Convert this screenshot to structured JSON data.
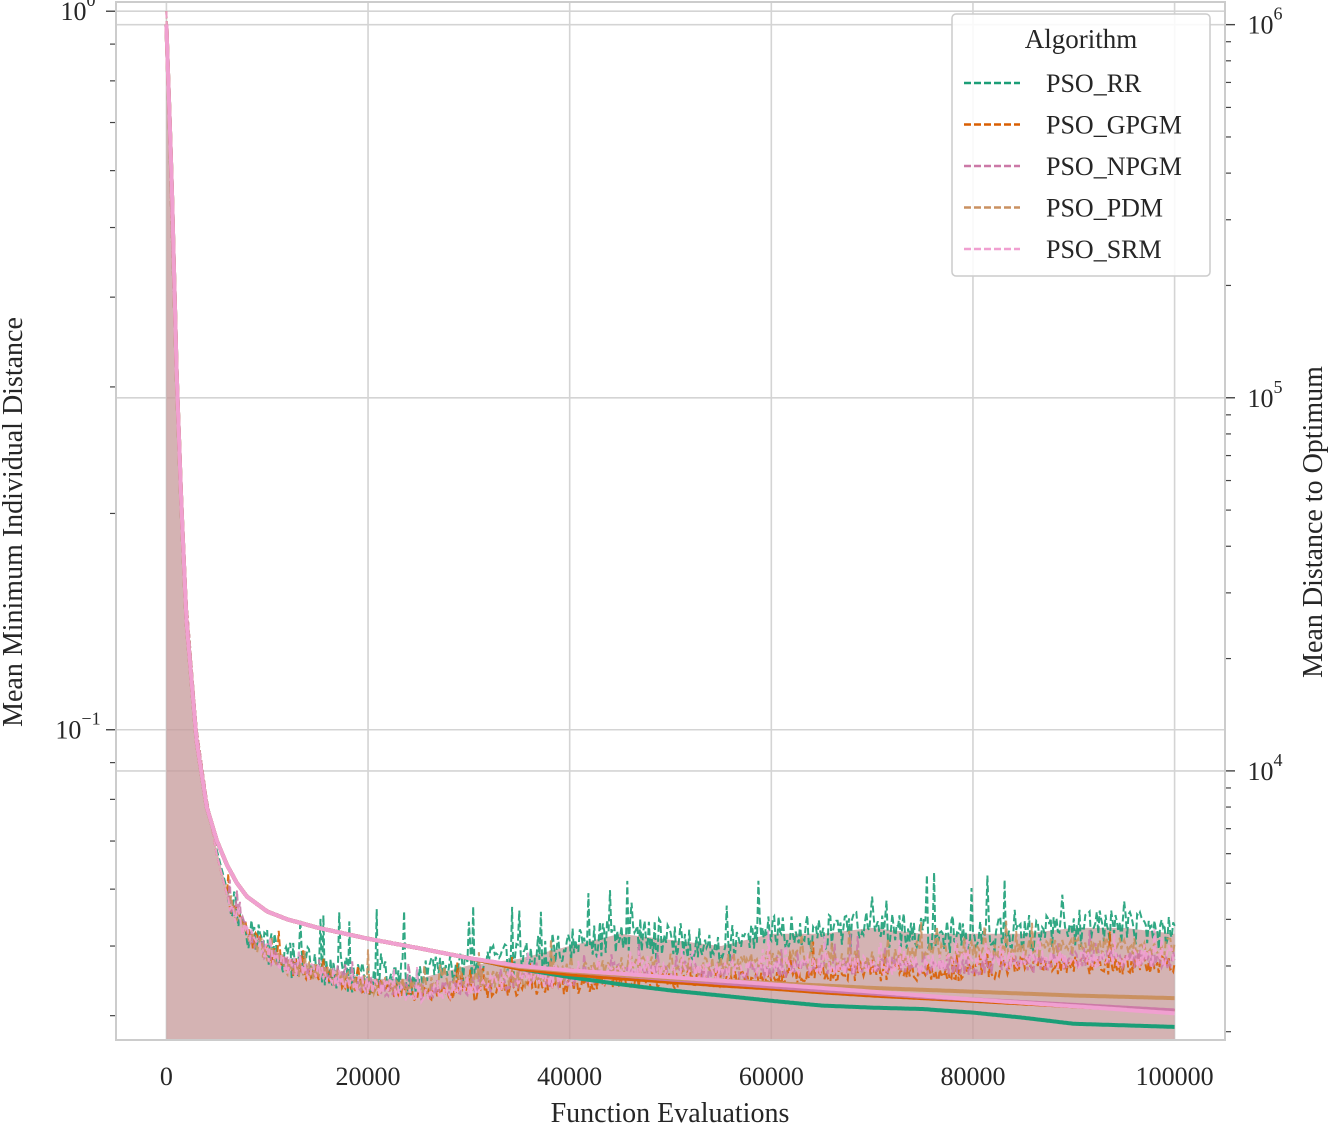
{
  "chart_data": {
    "type": "line",
    "title": "",
    "xlabel": "Function Evaluations",
    "ylabel_left": "Mean Minimum Individual Distance",
    "ylabel_right": "Mean Distance to Optimum",
    "xlim": [
      -5000,
      105000
    ],
    "x_ticks": [
      "0",
      "20000",
      "40000",
      "60000",
      "80000",
      "100000"
    ],
    "x_tick_values": [
      0,
      20000,
      40000,
      60000,
      80000,
      100000
    ],
    "left_axis": {
      "scale": "log",
      "ylim": [
        0.037,
        1.03
      ],
      "ticks": [
        {
          "value": 1.0,
          "base": "10",
          "exp": "0"
        },
        {
          "value": 0.1,
          "base": "10",
          "exp": "−1"
        }
      ]
    },
    "right_axis": {
      "scale": "log",
      "ylim": [
        1900,
        1150000
      ],
      "ticks": [
        {
          "value": 10000,
          "base": "10",
          "exp": "4"
        },
        {
          "value": 100000,
          "base": "10",
          "exp": "5"
        },
        {
          "value": 1000000,
          "base": "10",
          "exp": "6"
        }
      ]
    },
    "grid": true,
    "legend": {
      "title": "Algorithm",
      "placement": "top-right"
    },
    "colors": {
      "PSO_RR": "#1b9e77",
      "PSO_GPGM": "#d95f02",
      "PSO_NPGM": "#cc79a7",
      "PSO_PDM": "#ca9161",
      "PSO_SRM": "#f0a0d0",
      "fill": "#c59a9a"
    },
    "x": [
      0,
      500,
      1000,
      1500,
      2000,
      3000,
      4000,
      5000,
      6000,
      7000,
      8000,
      10000,
      12000,
      15000,
      20000,
      25000,
      30000,
      35000,
      40000,
      45000,
      50000,
      55000,
      60000,
      65000,
      70000,
      75000,
      80000,
      85000,
      90000,
      95000,
      100000
    ],
    "series": [
      {
        "name": "PSO_RR",
        "min_individual_distance": [
          1.0,
          0.5,
          0.3,
          0.2,
          0.15,
          0.1,
          0.08,
          0.068,
          0.06,
          0.056,
          0.053,
          0.05,
          0.048,
          0.047,
          0.045,
          0.045,
          0.047,
          0.048,
          0.05,
          0.052,
          0.051,
          0.05,
          0.052,
          0.052,
          0.053,
          0.052,
          0.052,
          0.052,
          0.053,
          0.053,
          0.052
        ],
        "distance_to_optimum": [
          1000000,
          400000,
          120000,
          50000,
          25000,
          12000,
          8000,
          6500,
          5600,
          5000,
          4600,
          4200,
          4000,
          3800,
          3550,
          3350,
          3150,
          2950,
          2800,
          2680,
          2580,
          2500,
          2420,
          2350,
          2320,
          2300,
          2250,
          2180,
          2100,
          2080,
          2060
        ]
      },
      {
        "name": "PSO_GPGM",
        "min_individual_distance": [
          1.0,
          0.5,
          0.3,
          0.2,
          0.15,
          0.1,
          0.08,
          0.067,
          0.059,
          0.055,
          0.052,
          0.049,
          0.047,
          0.046,
          0.044,
          0.043,
          0.043,
          0.044,
          0.044,
          0.045,
          0.045,
          0.045,
          0.045,
          0.046,
          0.046,
          0.046,
          0.046,
          0.047,
          0.047,
          0.047,
          0.047
        ],
        "distance_to_optimum": [
          1000000,
          400000,
          120000,
          50000,
          25000,
          12000,
          8000,
          6500,
          5600,
          5000,
          4600,
          4200,
          4000,
          3800,
          3550,
          3350,
          3150,
          2950,
          2850,
          2780,
          2720,
          2660,
          2610,
          2550,
          2500,
          2460,
          2420,
          2380,
          2340,
          2300,
          2270
        ]
      },
      {
        "name": "PSO_NPGM",
        "min_individual_distance": [
          1.0,
          0.5,
          0.3,
          0.2,
          0.15,
          0.1,
          0.08,
          0.067,
          0.059,
          0.055,
          0.052,
          0.049,
          0.047,
          0.046,
          0.044,
          0.043,
          0.044,
          0.045,
          0.045,
          0.046,
          0.046,
          0.046,
          0.046,
          0.047,
          0.047,
          0.047,
          0.047,
          0.047,
          0.048,
          0.048,
          0.048
        ],
        "distance_to_optimum": [
          1000000,
          400000,
          120000,
          50000,
          25000,
          12000,
          8000,
          6500,
          5600,
          5000,
          4600,
          4200,
          4000,
          3800,
          3550,
          3350,
          3150,
          3000,
          2900,
          2830,
          2760,
          2700,
          2640,
          2580,
          2530,
          2480,
          2440,
          2400,
          2360,
          2320,
          2280
        ]
      },
      {
        "name": "PSO_PDM",
        "min_individual_distance": [
          1.0,
          0.5,
          0.3,
          0.2,
          0.15,
          0.1,
          0.08,
          0.067,
          0.059,
          0.055,
          0.052,
          0.049,
          0.047,
          0.046,
          0.044,
          0.044,
          0.045,
          0.045,
          0.046,
          0.047,
          0.047,
          0.047,
          0.048,
          0.048,
          0.048,
          0.049,
          0.049,
          0.049,
          0.05,
          0.05,
          0.05
        ],
        "distance_to_optimum": [
          1000000,
          400000,
          120000,
          50000,
          25000,
          12000,
          8000,
          6500,
          5600,
          5000,
          4600,
          4200,
          4000,
          3800,
          3550,
          3350,
          3150,
          2980,
          2900,
          2840,
          2780,
          2740,
          2700,
          2660,
          2620,
          2590,
          2560,
          2530,
          2500,
          2480,
          2460
        ]
      },
      {
        "name": "PSO_SRM",
        "min_individual_distance": [
          1.0,
          0.5,
          0.3,
          0.2,
          0.15,
          0.1,
          0.08,
          0.067,
          0.059,
          0.055,
          0.052,
          0.049,
          0.047,
          0.046,
          0.044,
          0.043,
          0.044,
          0.045,
          0.045,
          0.046,
          0.046,
          0.046,
          0.047,
          0.047,
          0.047,
          0.047,
          0.048,
          0.048,
          0.048,
          0.048,
          0.048
        ],
        "distance_to_optimum": [
          1000000,
          400000,
          120000,
          50000,
          25000,
          12000,
          8000,
          6500,
          5600,
          5000,
          4600,
          4200,
          4000,
          3800,
          3550,
          3350,
          3150,
          3000,
          2920,
          2860,
          2800,
          2740,
          2680,
          2620,
          2560,
          2500,
          2440,
          2390,
          2340,
          2290,
          2240
        ]
      }
    ]
  }
}
